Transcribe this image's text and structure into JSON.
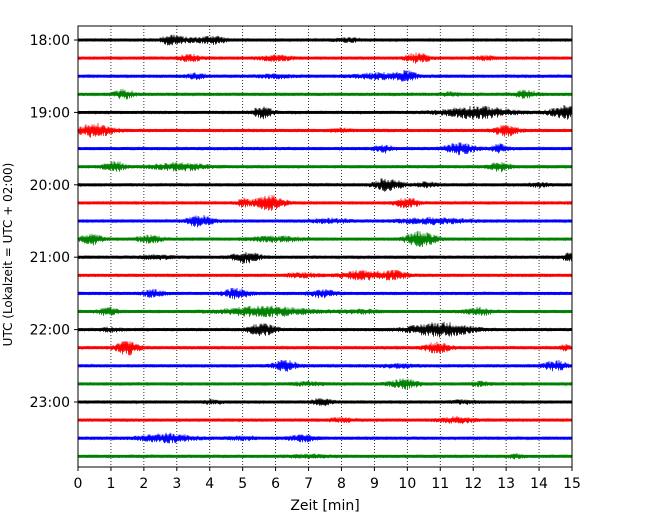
{
  "chart_data": {
    "type": "line",
    "title": "",
    "xlabel": "Zeit  [min]",
    "ylabel": "UTC (Lokalzeit = UTC + 02:00)",
    "xlim": [
      0,
      15
    ],
    "x_ticks": [
      "0",
      "1",
      "2",
      "3",
      "4",
      "5",
      "6",
      "7",
      "8",
      "9",
      "10",
      "11",
      "12",
      "13",
      "14",
      "15"
    ],
    "y_ticks": [
      "18:00",
      "19:00",
      "20:00",
      "21:00",
      "22:00",
      "23:00"
    ],
    "grid": "vertical dotted",
    "colors": [
      "#000000",
      "#ff0000",
      "#0000ff",
      "#008000"
    ],
    "row_minutes": 15,
    "start_time": "18:00",
    "traces": [
      {
        "start": "18:00",
        "color": "#000000",
        "events": [
          [
            2.85,
            4.5,
            0.3
          ],
          [
            4.15,
            3.0,
            0.3
          ],
          [
            3.6,
            1.6,
            0.6
          ],
          [
            8.2,
            1.6,
            0.4
          ]
        ]
      },
      {
        "start": "18:15",
        "color": "#ff0000",
        "events": [
          [
            3.4,
            3.0,
            0.35
          ],
          [
            10.3,
            4.5,
            0.35
          ],
          [
            6.0,
            2.4,
            0.5
          ],
          [
            12.4,
            1.6,
            0.3
          ]
        ]
      },
      {
        "start": "18:30",
        "color": "#0000ff",
        "events": [
          [
            3.6,
            2.3,
            0.3
          ],
          [
            10.0,
            3.5,
            0.25
          ],
          [
            9.3,
            2.6,
            0.9
          ],
          [
            6.0,
            1.6,
            0.5
          ]
        ]
      },
      {
        "start": "18:45",
        "color": "#008000",
        "events": [
          [
            1.4,
            4.2,
            0.3
          ],
          [
            13.6,
            3.8,
            0.3
          ],
          [
            11.3,
            1.5,
            0.3
          ]
        ]
      },
      {
        "start": "19:00",
        "color": "#000000",
        "events": [
          [
            5.6,
            5.5,
            0.3
          ],
          [
            12.1,
            5.5,
            1.0
          ],
          [
            14.8,
            6.0,
            0.45
          ]
        ]
      },
      {
        "start": "19:15",
        "color": "#ff0000",
        "events": [
          [
            0.5,
            6.0,
            0.55
          ],
          [
            13.0,
            5.0,
            0.35
          ],
          [
            8.0,
            1.6,
            0.3
          ]
        ]
      },
      {
        "start": "19:30",
        "color": "#0000ff",
        "events": [
          [
            11.6,
            5.0,
            0.45
          ],
          [
            9.3,
            3.6,
            0.3
          ],
          [
            12.8,
            3.6,
            0.3
          ]
        ]
      },
      {
        "start": "19:45",
        "color": "#008000",
        "events": [
          [
            1.1,
            5.0,
            0.3
          ],
          [
            3.1,
            3.5,
            0.8
          ],
          [
            12.8,
            4.0,
            0.3
          ]
        ]
      },
      {
        "start": "20:00",
        "color": "#000000",
        "events": [
          [
            9.4,
            6.0,
            0.4
          ],
          [
            10.6,
            2.0,
            0.3
          ],
          [
            14.0,
            1.6,
            0.3
          ]
        ]
      },
      {
        "start": "20:15",
        "color": "#ff0000",
        "events": [
          [
            5.8,
            7.0,
            0.45
          ],
          [
            10.0,
            4.5,
            0.35
          ],
          [
            5.0,
            3.0,
            0.2
          ]
        ]
      },
      {
        "start": "20:30",
        "color": "#0000ff",
        "events": [
          [
            3.7,
            5.0,
            0.4
          ],
          [
            10.8,
            2.8,
            1.0
          ],
          [
            7.7,
            1.7,
            0.6
          ]
        ]
      },
      {
        "start": "20:45",
        "color": "#008000",
        "events": [
          [
            0.4,
            5.0,
            0.3
          ],
          [
            2.2,
            3.2,
            0.4
          ],
          [
            10.4,
            7.0,
            0.45
          ],
          [
            6.0,
            2.3,
            0.8
          ]
        ]
      },
      {
        "start": "21:00",
        "color": "#000000",
        "events": [
          [
            5.1,
            4.8,
            0.4
          ],
          [
            14.9,
            3.5,
            0.2
          ],
          [
            2.4,
            1.6,
            0.5
          ]
        ]
      },
      {
        "start": "21:15",
        "color": "#ff0000",
        "events": [
          [
            8.6,
            4.0,
            0.6
          ],
          [
            9.6,
            4.0,
            0.4
          ],
          [
            6.8,
            1.8,
            0.5
          ]
        ]
      },
      {
        "start": "21:30",
        "color": "#0000ff",
        "events": [
          [
            2.3,
            3.3,
            0.3
          ],
          [
            4.8,
            4.5,
            0.4
          ],
          [
            7.4,
            3.5,
            0.4
          ]
        ]
      },
      {
        "start": "21:45",
        "color": "#008000",
        "events": [
          [
            0.9,
            3.5,
            0.3
          ],
          [
            5.7,
            4.5,
            1.3
          ],
          [
            12.2,
            3.2,
            0.4
          ],
          [
            8.5,
            1.6,
            0.6
          ]
        ]
      },
      {
        "start": "22:00",
        "color": "#000000",
        "events": [
          [
            5.6,
            6.0,
            0.4
          ],
          [
            11.0,
            6.5,
            0.9
          ],
          [
            1.0,
            1.6,
            0.3
          ]
        ]
      },
      {
        "start": "22:15",
        "color": "#ff0000",
        "events": [
          [
            1.5,
            6.5,
            0.35
          ],
          [
            10.9,
            4.5,
            0.4
          ],
          [
            14.8,
            2.8,
            0.15
          ]
        ]
      },
      {
        "start": "22:30",
        "color": "#0000ff",
        "events": [
          [
            6.3,
            5.0,
            0.35
          ],
          [
            14.5,
            4.5,
            0.35
          ],
          [
            9.7,
            1.6,
            0.5
          ]
        ]
      },
      {
        "start": "22:45",
        "color": "#008000",
        "events": [
          [
            9.9,
            4.2,
            0.45
          ],
          [
            12.2,
            2.0,
            0.3
          ],
          [
            7.0,
            1.4,
            0.5
          ]
        ]
      },
      {
        "start": "23:00",
        "color": "#000000",
        "events": [
          [
            7.4,
            3.0,
            0.3
          ],
          [
            4.1,
            1.6,
            0.3
          ],
          [
            11.7,
            1.5,
            0.4
          ]
        ]
      },
      {
        "start": "23:15",
        "color": "#ff0000",
        "events": [
          [
            11.5,
            2.6,
            0.5
          ],
          [
            8.0,
            1.6,
            0.4
          ]
        ]
      },
      {
        "start": "23:30",
        "color": "#0000ff",
        "events": [
          [
            2.7,
            4.0,
            0.8
          ],
          [
            6.8,
            3.0,
            0.4
          ],
          [
            5.0,
            1.5,
            0.4
          ]
        ]
      },
      {
        "start": "23:45",
        "color": "#008000",
        "events": [
          [
            13.3,
            2.0,
            0.2
          ],
          [
            7.0,
            1.2,
            0.6
          ]
        ]
      }
    ]
  }
}
